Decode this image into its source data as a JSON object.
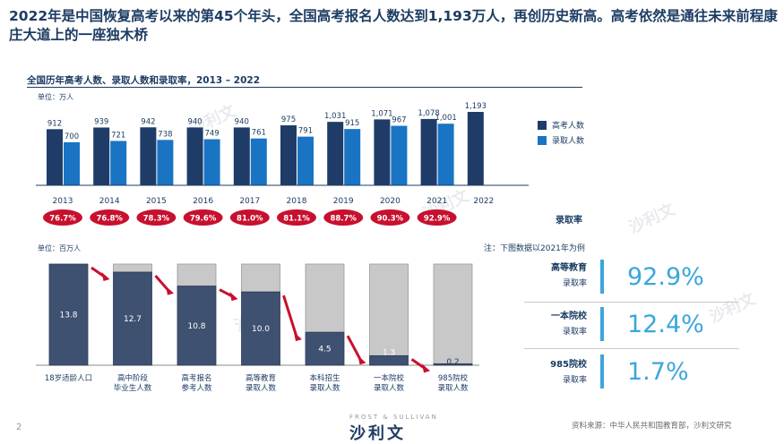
{
  "headline": "2022年是中国恢复高考以来的第45个年头，全国高考报名人数达到1,193万人，再创历史新高。高考依然是通往未来前程康庄大道上的一座独木桥",
  "chart_data": [
    {
      "type": "bar",
      "title": "全国历年高考人数、录取人数和录取率，2013 – 2022",
      "unit": "单位：万人",
      "categories": [
        "2013",
        "2014",
        "2015",
        "2016",
        "2017",
        "2018",
        "2019",
        "2020",
        "2021",
        "2022"
      ],
      "series": [
        {
          "name": "高考人数",
          "color": "#1f3c68",
          "values": [
            912,
            939,
            942,
            940,
            940,
            975,
            1031,
            1071,
            1078,
            1193
          ]
        },
        {
          "name": "录取人数",
          "color": "#1a74c4",
          "values": [
            700,
            721,
            738,
            749,
            761,
            791,
            915,
            967,
            1001,
            null
          ]
        }
      ],
      "value_labels": {
        "高考人数": [
          "912",
          "939",
          "942",
          "940",
          "940",
          "975",
          "1,031",
          "1,071",
          "1,078",
          "1,193"
        ],
        "录取人数": [
          "700",
          "721",
          "738",
          "749",
          "761",
          "791",
          "915",
          "967",
          "1,001",
          ""
        ]
      },
      "rate_label": "录取率",
      "rates": [
        "76.7%",
        "76.8%",
        "78.3%",
        "79.6%",
        "81.0%",
        "81.1%",
        "88.7%",
        "90.3%",
        "92.9%"
      ],
      "ylim": [
        0,
        1250
      ],
      "legend": "right"
    },
    {
      "type": "bar",
      "unit": "单位：百万人",
      "note": "注：下图数据以2021年为例",
      "categories": [
        [
          "18岁适龄人口"
        ],
        [
          "高中阶段",
          "毕业生人数"
        ],
        [
          "高考报名",
          "参考人数"
        ],
        [
          "高等教育",
          "录取人数"
        ],
        [
          "本科招生",
          "录取人数"
        ],
        [
          "一本院校",
          "录取人数"
        ],
        [
          "985院校",
          "录取人数"
        ]
      ],
      "values": [
        13.8,
        12.7,
        10.8,
        10.0,
        4.5,
        1.3,
        0.2
      ],
      "value_labels": [
        "13.8",
        "12.7",
        "10.8",
        "10.0",
        "4.5",
        "1.3",
        "0.2"
      ],
      "total": 13.8
    }
  ],
  "rates_panel": [
    {
      "label1": "高等教育",
      "label2": "录取率",
      "value": "92.9%"
    },
    {
      "label1": "一本院校",
      "label2": "录取率",
      "value": "12.4%"
    },
    {
      "label1": "985院校",
      "label2": "录取率",
      "value": "1.7%"
    }
  ],
  "footer": {
    "page": "2",
    "source": "资料来源：中华人民共和国教育部，沙利文研究",
    "logo_small": "FROST & SULLIVAN",
    "logo_big": "沙利文"
  },
  "watermark": "沙利文",
  "colors": {
    "navy": "#1f3c68",
    "blue": "#1a74c4",
    "red": "#c8102e",
    "lightgray": "#c8c8c8",
    "accent": "#3ba6dc"
  }
}
